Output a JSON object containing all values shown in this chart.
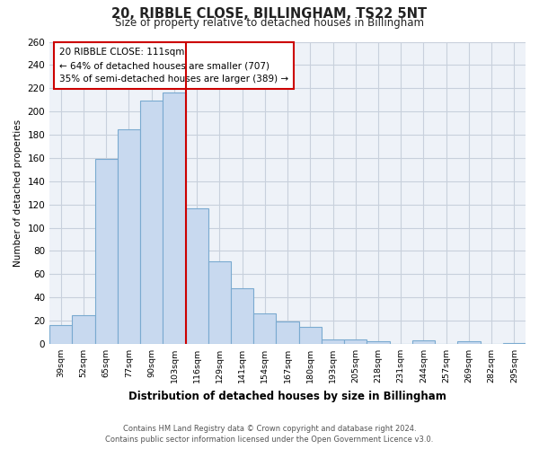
{
  "title": "20, RIBBLE CLOSE, BILLINGHAM, TS22 5NT",
  "subtitle": "Size of property relative to detached houses in Billingham",
  "xlabel": "Distribution of detached houses by size in Billingham",
  "ylabel": "Number of detached properties",
  "categories": [
    "39sqm",
    "52sqm",
    "65sqm",
    "77sqm",
    "90sqm",
    "103sqm",
    "116sqm",
    "129sqm",
    "141sqm",
    "154sqm",
    "167sqm",
    "180sqm",
    "193sqm",
    "205sqm",
    "218sqm",
    "231sqm",
    "244sqm",
    "257sqm",
    "269sqm",
    "282sqm",
    "295sqm"
  ],
  "values": [
    16,
    25,
    159,
    185,
    209,
    216,
    117,
    71,
    48,
    26,
    19,
    15,
    4,
    4,
    2,
    0,
    3,
    0,
    2,
    0,
    1
  ],
  "bar_color": "#c8d9ef",
  "bar_edge_color": "#7aaad0",
  "vline_x": 5.5,
  "vline_color": "#cc0000",
  "annotation_title": "20 RIBBLE CLOSE: 111sqm",
  "annotation_line1": "← 64% of detached houses are smaller (707)",
  "annotation_line2": "35% of semi-detached houses are larger (389) →",
  "ylim": [
    0,
    260
  ],
  "yticks": [
    0,
    20,
    40,
    60,
    80,
    100,
    120,
    140,
    160,
    180,
    200,
    220,
    240,
    260
  ],
  "footer_line1": "Contains HM Land Registry data © Crown copyright and database right 2024.",
  "footer_line2": "Contains public sector information licensed under the Open Government Licence v3.0.",
  "background_color": "#ffffff",
  "grid_color": "#c8d0dc"
}
